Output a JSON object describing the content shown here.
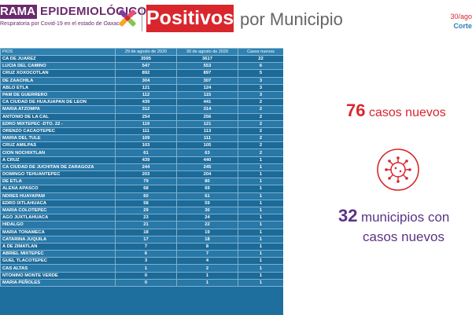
{
  "header": {
    "brand_tag": "RAMA",
    "brand_title": "EPIDEMIOLÓGICO",
    "brand_subtitle": "Respiratoria por Covid-19 en el estado de Oaxaca",
    "positivos": "Positivos",
    "title_rest": "por Municipio",
    "date": "30/ago",
    "corte": "Corte"
  },
  "table": {
    "headers": [
      "PIOS",
      "29 de agosto de 2020",
      "30 de agosto de 2020",
      "Casos nuevos"
    ],
    "rows": [
      [
        "CA DE JUAREZ",
        "3595",
        "3617",
        "22"
      ],
      [
        "LUCIA DEL CAMINO",
        "547",
        "553",
        "6"
      ],
      [
        "CRUZ XOXOCOTLAN",
        "892",
        "897",
        "5"
      ],
      [
        "DE ZAACHILA",
        "304",
        "307",
        "3"
      ],
      [
        "ABLO ETLA",
        "121",
        "124",
        "3"
      ],
      [
        "PAM DE GUERRERO",
        "112",
        "115",
        "3"
      ],
      [
        "CA CIUDAD DE HUAJUAPAN DE LEON",
        "439",
        "441",
        "2"
      ],
      [
        "MARIA ATZOMPA",
        "312",
        "314",
        "2"
      ],
      [
        "ANTONIO DE LA CAL",
        "254",
        "256",
        "2"
      ],
      [
        "EDRO MIXTEPEC -DTO. 22 -",
        "119",
        "121",
        "2"
      ],
      [
        "ORENZO CACAOTEPEC",
        "111",
        "113",
        "2"
      ],
      [
        "MARIA DEL TULE",
        "109",
        "111",
        "2"
      ],
      [
        "CRUZ AMILPAS",
        "103",
        "105",
        "2"
      ],
      [
        "CION NOCHIXTLAN",
        "61",
        "63",
        "2"
      ],
      [
        "A CRUZ",
        "439",
        "440",
        "1"
      ],
      [
        "CA CIUDAD DE JUCHITAN DE ZARAGOZA",
        "244",
        "245",
        "1"
      ],
      [
        "DOMINGO TEHUANTEPEC",
        "203",
        "204",
        "1"
      ],
      [
        "DE ETLA",
        "79",
        "80",
        "1"
      ],
      [
        "ALENA APASCO",
        "68",
        "69",
        "1"
      ],
      [
        "NDRES HUAYAPAM",
        "60",
        "61",
        "1"
      ],
      [
        "EDRO IXTLAHUACA",
        "58",
        "59",
        "1"
      ],
      [
        "MARIA COLOTEPEC",
        "29",
        "30",
        "1"
      ],
      [
        "AGO JUXTLAHUACA",
        "23",
        "24",
        "1"
      ],
      [
        "HIDALGO",
        "21",
        "22",
        "1"
      ],
      [
        "MARIA TONAMECA",
        "18",
        "19",
        "1"
      ],
      [
        "CATARINA JUQUILA",
        "17",
        "18",
        "1"
      ],
      [
        "A DE ZIMATLAN",
        "7",
        "8",
        "1"
      ],
      [
        "ABRIEL MIXTEPEC",
        "6",
        "7",
        "1"
      ],
      [
        "GUEL TLACOTEPEC",
        "3",
        "4",
        "1"
      ],
      [
        "CAS ALTAS",
        "1",
        "2",
        "1"
      ],
      [
        "NTONINO MONTE VERDE",
        "0",
        "1",
        "1"
      ],
      [
        "MARIA PEÑOLES",
        "0",
        "1",
        "1"
      ]
    ]
  },
  "summary": {
    "casos_num": "76",
    "casos_text": "casos nuevos",
    "mun_num": "32",
    "mun_text1": "municipios con",
    "mun_text2": "casos nuevos"
  },
  "icons": {
    "logo": "colorful-cross-logo-icon",
    "virus": "virus-icon"
  },
  "colors": {
    "purple": "#6b2a6e",
    "red": "#d9262d",
    "table_blue": "#1f6f9e",
    "summary_purple": "#5b3386"
  }
}
